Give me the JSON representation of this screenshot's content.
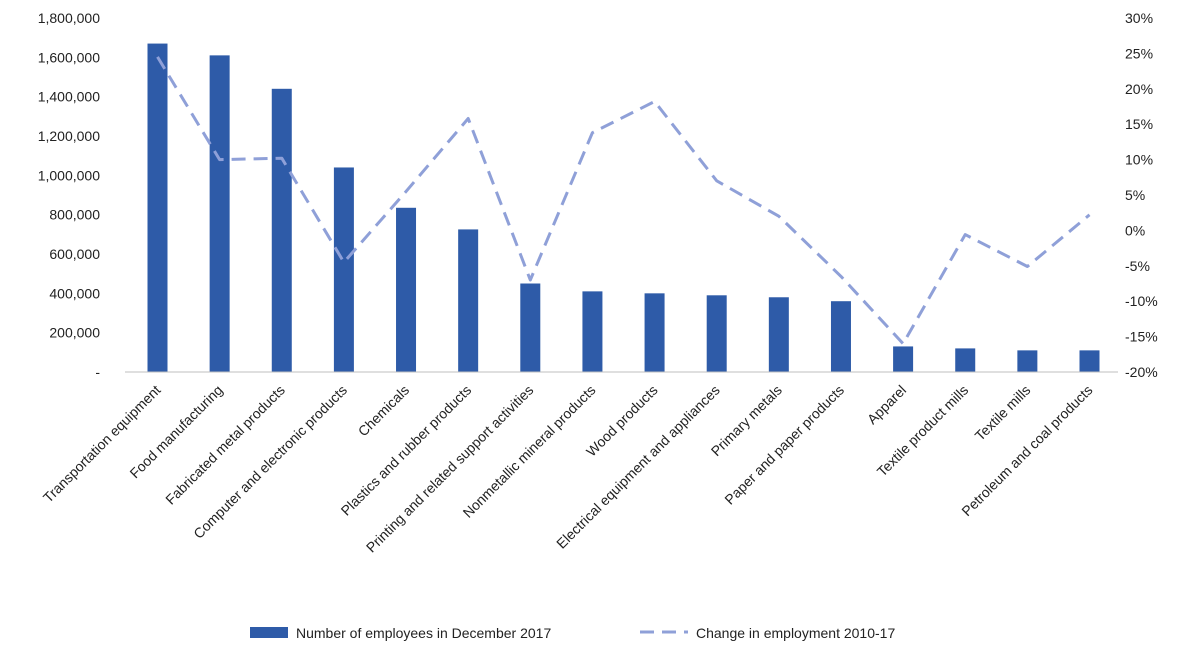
{
  "chart_data": {
    "type": "bar",
    "categories": [
      "Transportation equipment",
      "Food manufacturing",
      "Fabricated metal products",
      "Computer and electronic products",
      "Chemicals",
      "Plastics and rubber products",
      "Printing and related support activities",
      "Nonmetallic mineral products",
      "Wood products",
      "Electrical equipment and appliances",
      "Primary metals",
      "Paper and paper products",
      "Apparel",
      "Textile product mills",
      "Textile mills",
      "Petroleum and coal products"
    ],
    "series": [
      {
        "name": "Number of employees in December 2017",
        "type": "bar",
        "axis": "left",
        "color": "#2e5ba8",
        "values": [
          1670000,
          1610000,
          1440000,
          1040000,
          835000,
          725000,
          450000,
          410000,
          400000,
          390000,
          380000,
          360000,
          130000,
          120000,
          110000,
          110000
        ]
      },
      {
        "name": "Change in employment 2010-17",
        "type": "line",
        "style": "dashed",
        "axis": "right",
        "color": "#8fa0d8",
        "values": [
          24.5,
          10.0,
          10.2,
          -4.5,
          5.5,
          15.8,
          -7.0,
          13.8,
          18.2,
          7.0,
          2.0,
          -6.5,
          -16.0,
          -0.6,
          -5.1,
          2.2
        ]
      }
    ],
    "y_left": {
      "ylim": [
        0,
        1800000
      ],
      "ticks": [
        0,
        200000,
        400000,
        600000,
        800000,
        1000000,
        1200000,
        1400000,
        1600000,
        1800000
      ],
      "tick_labels": [
        "-",
        "200,000",
        "400,000",
        "600,000",
        "800,000",
        "1,000,000",
        "1,200,000",
        "1,400,000",
        "1,600,000",
        "1,800,000"
      ]
    },
    "y_right": {
      "ylim": [
        -20,
        30
      ],
      "ticks": [
        -20,
        -15,
        -10,
        -5,
        0,
        5,
        10,
        15,
        20,
        25,
        30
      ],
      "tick_labels": [
        "-20%",
        "-15%",
        "-10%",
        "-5%",
        "0%",
        "5%",
        "10%",
        "15%",
        "20%",
        "25%",
        "30%"
      ]
    },
    "grid": false,
    "legend": "bottom",
    "title": "",
    "xlabel": "",
    "ylabel": ""
  }
}
